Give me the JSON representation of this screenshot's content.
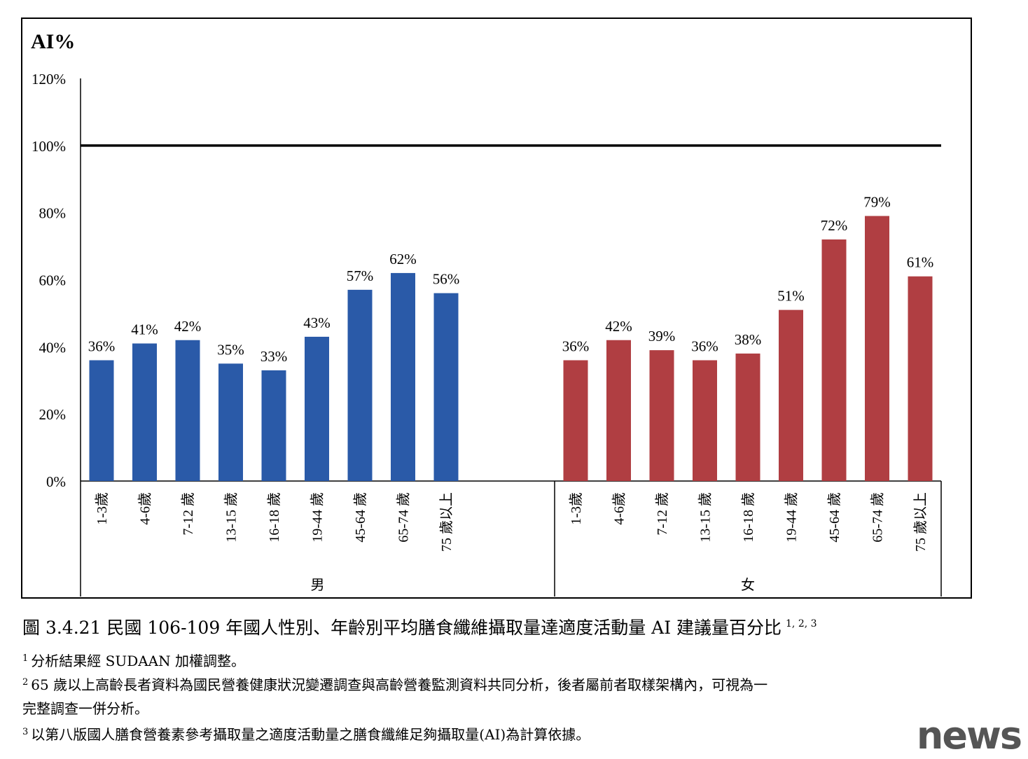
{
  "chart_data": {
    "type": "bar",
    "ylabel": "AI%",
    "ylim": [
      0,
      120
    ],
    "yticks": [
      "0%",
      "20%",
      "40%",
      "60%",
      "80%",
      "100%",
      "120%"
    ],
    "reference_line": 100,
    "groups": [
      {
        "name": "男",
        "color": "#2a5aa8",
        "categories": [
          "1-3歲",
          "4-6歲",
          "7-12 歲",
          "13-15 歲",
          "16-18 歲",
          "19-44 歲",
          "45-64 歲",
          "65-74 歲",
          "75 歲以上"
        ],
        "values": [
          36,
          41,
          42,
          35,
          33,
          43,
          57,
          62,
          56
        ],
        "labels": [
          "36%",
          "41%",
          "42%",
          "35%",
          "33%",
          "43%",
          "57%",
          "62%",
          "56%"
        ]
      },
      {
        "name": "女",
        "color": "#b03e42",
        "categories": [
          "1-3歲",
          "4-6歲",
          "7-12 歲",
          "13-15 歲",
          "16-18 歲",
          "19-44 歲",
          "45-64 歲",
          "65-74 歲",
          "75 歲以上"
        ],
        "values": [
          36,
          42,
          39,
          36,
          38,
          51,
          72,
          79,
          61
        ],
        "labels": [
          "36%",
          "42%",
          "39%",
          "36%",
          "38%",
          "51%",
          "72%",
          "79%",
          "61%"
        ]
      }
    ],
    "grid": false,
    "legend": "none"
  },
  "caption": {
    "text": "圖 3.4.21 民國 106-109 年國人性別、年齡別平均膳食纖維攝取量達適度活動量 AI 建議量百分比",
    "sup": "1, 2, 3"
  },
  "notes": [
    {
      "num": "1",
      "text": "分析結果經 SUDAAN 加權調整。"
    },
    {
      "num": "2",
      "text": "65 歲以上高齡長者資料為國民營養健康狀況變遷調查與高齡營養監測資料共同分析，後者屬前者取樣架構內，可視為一"
    },
    {
      "num": "",
      "text": "完整調查一併分析。"
    },
    {
      "num": "3",
      "text": "以第八版國人膳食營養素參考攝取量之適度活動量之膳食纖維足夠攝取量(AI)為計算依據。"
    }
  ],
  "watermark": "news"
}
